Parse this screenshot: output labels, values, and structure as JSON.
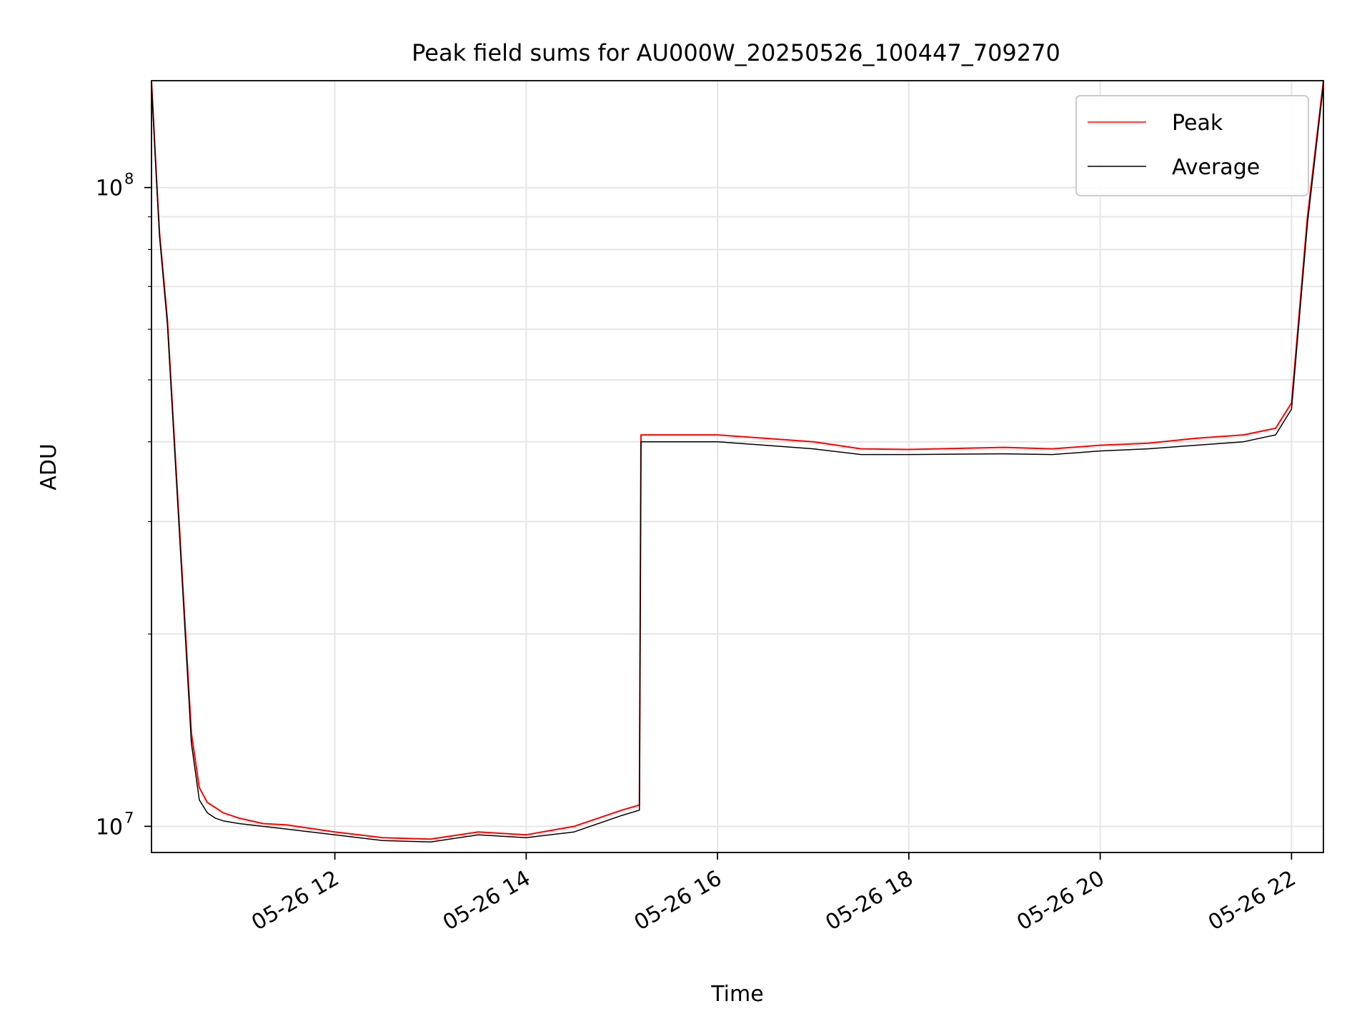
{
  "chart_data": {
    "type": "line",
    "title": "Peak field sums for AU000W_20250526_100447_709270",
    "xlabel": "Time",
    "ylabel": "ADU",
    "yscale": "log",
    "ylim": [
      9100000,
      147000000
    ],
    "xlim": [
      "2025-05-26 10:05",
      "2025-05-26 22:20"
    ],
    "grid": true,
    "legend": "upper right",
    "x_ticks": [
      "2025-05-26 12:00",
      "2025-05-26 14:00",
      "2025-05-26 16:00",
      "2025-05-26 18:00",
      "2025-05-26 20:00",
      "2025-05-26 22:00"
    ],
    "x_tick_labels": [
      "05-26 12",
      "05-26 14",
      "05-26 16",
      "05-26 18",
      "05-26 20",
      "05-26 22"
    ],
    "y_ticks": [
      10000000,
      100000000
    ],
    "y_tick_labels": [
      {
        "base": "10",
        "exp": "7"
      },
      {
        "base": "10",
        "exp": "8"
      }
    ],
    "series": [
      {
        "name": "Peak",
        "color": "#ff0000",
        "x": [
          "2025-05-26 10:05",
          "2025-05-26 10:08",
          "2025-05-26 10:10",
          "2025-05-26 10:15",
          "2025-05-26 10:25",
          "2025-05-26 10:30",
          "2025-05-26 10:35",
          "2025-05-26 10:40",
          "2025-05-26 10:45",
          "2025-05-26 10:50",
          "2025-05-26 11:00",
          "2025-05-26 11:15",
          "2025-05-26 11:30",
          "2025-05-26 12:00",
          "2025-05-26 12:30",
          "2025-05-26 13:00",
          "2025-05-26 13:30",
          "2025-05-26 14:00",
          "2025-05-26 14:30",
          "2025-05-26 15:00",
          "2025-05-26 15:11",
          "2025-05-26 15:12",
          "2025-05-26 16:00",
          "2025-05-26 16:30",
          "2025-05-26 17:00",
          "2025-05-26 17:30",
          "2025-05-26 18:00",
          "2025-05-26 19:00",
          "2025-05-26 19:30",
          "2025-05-26 20:00",
          "2025-05-26 20:30",
          "2025-05-26 21:00",
          "2025-05-26 21:30",
          "2025-05-26 21:50",
          "2025-05-26 22:00",
          "2025-05-26 22:10",
          "2025-05-26 22:20"
        ],
        "y": [
          147000000,
          105000000,
          85000000,
          62000000,
          23000000,
          14000000,
          11500000,
          10900000,
          10700000,
          10500000,
          10300000,
          10100000,
          10050000,
          9800000,
          9600000,
          9550000,
          9800000,
          9700000,
          10000000,
          10600000,
          10800000,
          41000000,
          41000000,
          40500000,
          40000000,
          39000000,
          38900000,
          39200000,
          39000000,
          39500000,
          39800000,
          40500000,
          41000000,
          42000000,
          46000000,
          90000000,
          147000000
        ]
      },
      {
        "name": "Average",
        "color": "#000000",
        "x": [
          "2025-05-26 10:05",
          "2025-05-26 10:08",
          "2025-05-26 10:10",
          "2025-05-26 10:15",
          "2025-05-26 10:25",
          "2025-05-26 10:30",
          "2025-05-26 10:35",
          "2025-05-26 10:40",
          "2025-05-26 10:45",
          "2025-05-26 10:50",
          "2025-05-26 11:00",
          "2025-05-26 11:15",
          "2025-05-26 11:30",
          "2025-05-26 12:00",
          "2025-05-26 12:30",
          "2025-05-26 13:00",
          "2025-05-26 13:30",
          "2025-05-26 14:00",
          "2025-05-26 14:30",
          "2025-05-26 15:00",
          "2025-05-26 15:11",
          "2025-05-26 15:12",
          "2025-05-26 16:00",
          "2025-05-26 16:30",
          "2025-05-26 17:00",
          "2025-05-26 17:30",
          "2025-05-26 18:00",
          "2025-05-26 19:00",
          "2025-05-26 19:30",
          "2025-05-26 20:00",
          "2025-05-26 20:30",
          "2025-05-26 21:00",
          "2025-05-26 21:30",
          "2025-05-26 21:50",
          "2025-05-26 22:00",
          "2025-05-26 22:10",
          "2025-05-26 22:20"
        ],
        "y": [
          145000000,
          104000000,
          84000000,
          61000000,
          22500000,
          13500000,
          11000000,
          10500000,
          10300000,
          10200000,
          10100000,
          10000000,
          9900000,
          9700000,
          9500000,
          9450000,
          9700000,
          9600000,
          9800000,
          10400000,
          10600000,
          40000000,
          40000000,
          39500000,
          39000000,
          38200000,
          38200000,
          38300000,
          38200000,
          38700000,
          39000000,
          39500000,
          40000000,
          41000000,
          45000000,
          88000000,
          145000000
        ]
      }
    ]
  }
}
